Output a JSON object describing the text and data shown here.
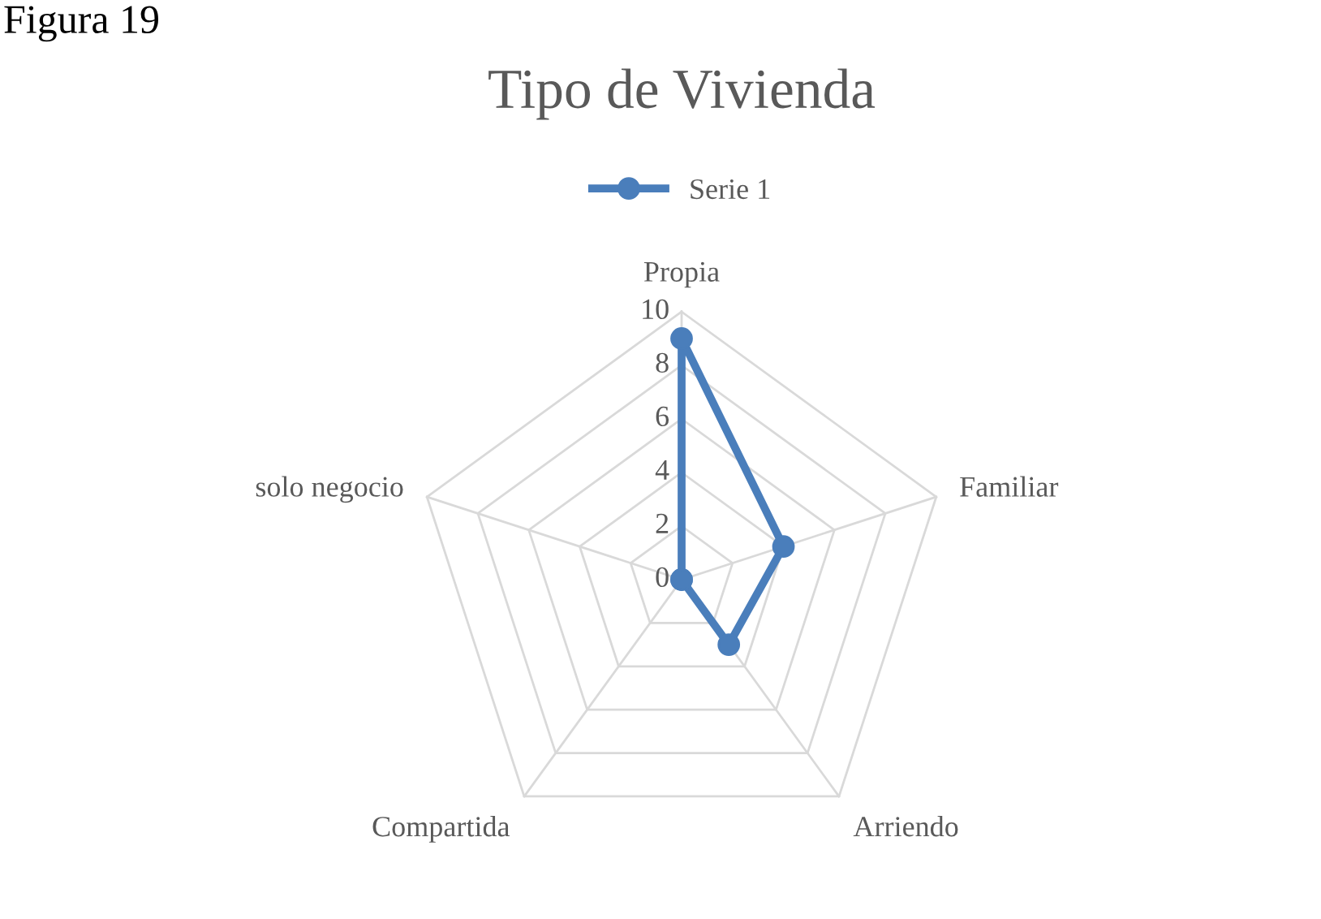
{
  "chart_data": {
    "type": "radar",
    "title": "Tipo de Vivienda",
    "annotations": [
      "Figura 19"
    ],
    "categories": [
      "Propia",
      "Familiar",
      "Arriendo",
      "Compartida",
      "solo negocio"
    ],
    "series": [
      {
        "name": "Serie 1",
        "color": "#4a7ebb",
        "values": [
          9,
          4,
          3,
          0,
          0
        ]
      }
    ],
    "ylim": [
      0,
      10
    ],
    "yticks": [
      0,
      2,
      4,
      6,
      8,
      10
    ],
    "grid": true,
    "legend": "top",
    "marker": "circle",
    "line_style": "solid"
  }
}
